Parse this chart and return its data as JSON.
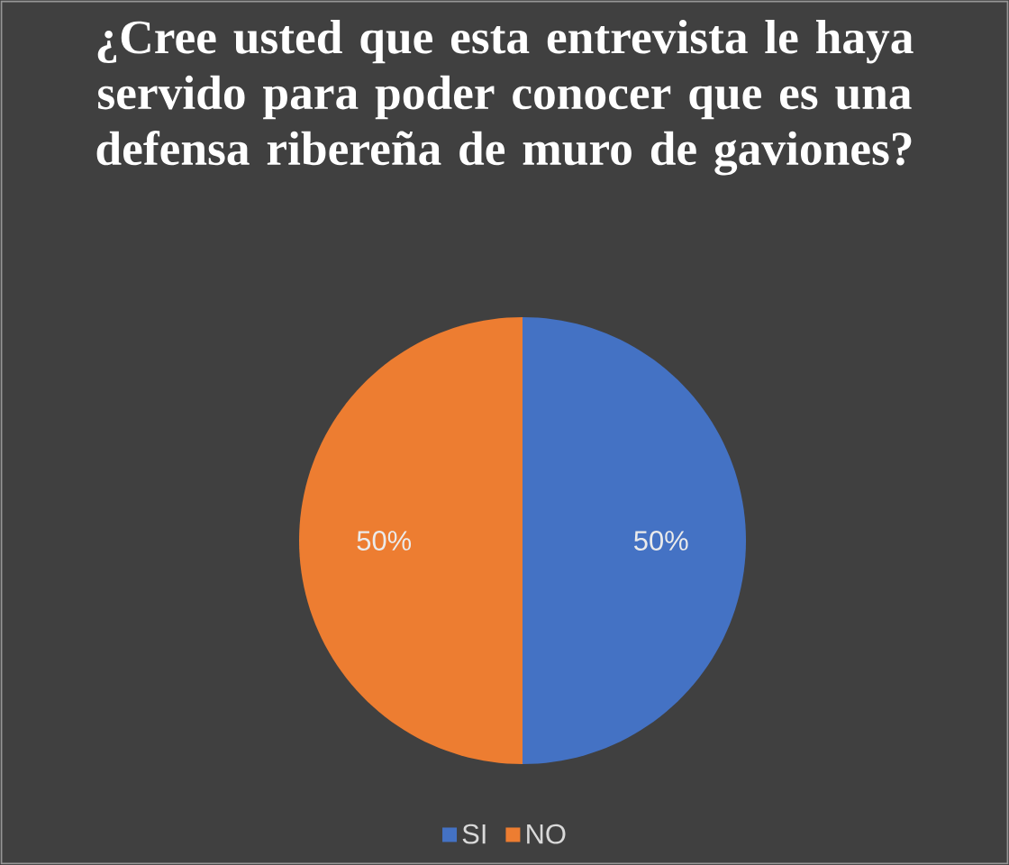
{
  "chart_data": {
    "type": "pie",
    "title": "¿Cree usted que esta entrevista le haya servido para poder conocer que es una defensa ribereña de muro de gaviones?",
    "categories": [
      "SI",
      "NO"
    ],
    "values": [
      50,
      50
    ],
    "colors": [
      "#4472c4",
      "#ed7d31"
    ],
    "value_labels": [
      "50%",
      "50%"
    ],
    "legend": "bottom"
  }
}
